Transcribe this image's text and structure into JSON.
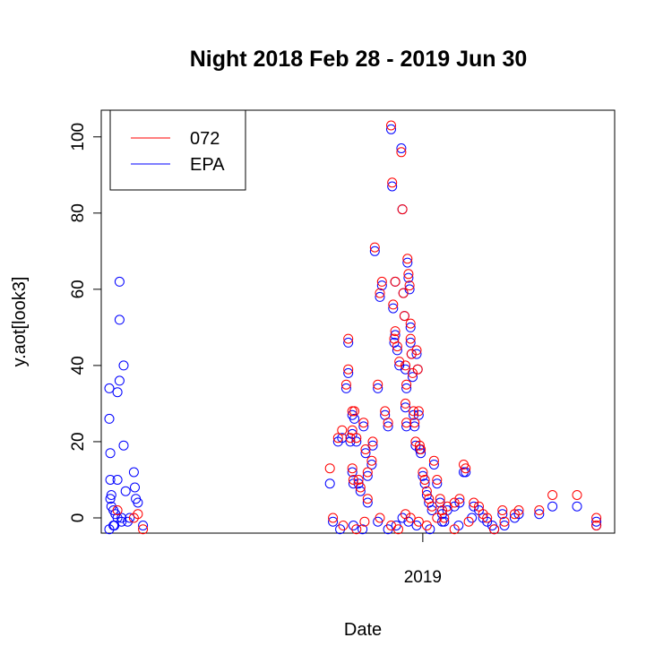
{
  "chart_data": {
    "type": "scatter",
    "title": "Night  2018 Feb 28 - 2019 Jun 30",
    "xlabel": "Date",
    "ylabel": "y.aot[look3]",
    "x_tick_labels": [
      "2019"
    ],
    "x_ticks": [
      "2019-01-01"
    ],
    "xlim": [
      "2018-02-28",
      "2019-06-30"
    ],
    "ylim": [
      -4,
      107
    ],
    "y_ticks": [
      0,
      20,
      40,
      60,
      80,
      100
    ],
    "grid": false,
    "legend": {
      "position": "top-left",
      "entries": [
        {
          "label": "072",
          "color": "#ff0000"
        },
        {
          "label": "EPA",
          "color": "#0000ff"
        }
      ]
    },
    "series": [
      {
        "name": "072",
        "color": "#ff0000",
        "marker": "open-circle",
        "x": [
          "2018-03-08",
          "2018-03-24",
          "2018-03-28",
          "2018-04-02",
          "2018-10-02",
          "2018-10-05",
          "2018-10-10",
          "2018-10-14",
          "2018-10-18",
          "2018-10-20",
          "2018-10-20",
          "2018-10-22",
          "2018-10-24",
          "2018-10-24",
          "2018-10-24",
          "2018-10-25",
          "2018-10-26",
          "2018-10-28",
          "2018-10-30",
          "2018-11-01",
          "2018-11-04",
          "2018-11-06",
          "2018-11-08",
          "2018-11-08",
          "2018-11-12",
          "2018-11-13",
          "2018-11-15",
          "2018-11-18",
          "2018-11-20",
          "2018-11-22",
          "2018-11-25",
          "2018-11-28",
          "2018-12-01",
          "2018-12-02",
          "2018-12-03",
          "2018-12-04",
          "2018-12-05",
          "2018-12-05",
          "2018-12-07",
          "2018-12-09",
          "2018-12-11",
          "2018-12-12",
          "2018-12-13",
          "2018-12-14",
          "2018-12-15",
          "2018-12-15",
          "2018-12-16",
          "2018-12-16",
          "2018-12-17",
          "2018-12-18",
          "2018-12-19",
          "2018-12-20",
          "2018-12-20",
          "2018-12-21",
          "2018-12-22",
          "2018-12-23",
          "2018-12-24",
          "2018-12-25",
          "2018-12-26",
          "2018-12-27",
          "2018-12-28",
          "2018-12-29",
          "2018-12-30",
          "2019-01-01",
          "2019-01-03",
          "2019-01-05",
          "2019-01-07",
          "2019-01-10",
          "2019-01-12",
          "2019-01-15",
          "2019-01-18",
          "2019-01-20",
          "2019-01-22",
          "2019-01-25",
          "2019-02-01",
          "2019-02-06",
          "2019-02-10",
          "2019-02-12",
          "2019-02-20",
          "2019-02-25",
          "2019-03-01",
          "2019-03-05",
          "2019-03-12",
          "2019-03-20",
          "2019-03-22",
          "2019-04-01",
          "2019-04-05",
          "2019-04-25",
          "2019-05-08",
          "2019-06-01",
          "2019-06-20",
          "2019-06-20",
          "2018-10-15",
          "2018-10-28",
          "2018-11-05",
          "2018-11-20",
          "2018-12-01",
          "2018-12-08",
          "2018-12-15",
          "2018-12-20",
          "2018-12-28",
          "2019-01-05",
          "2019-01-15",
          "2019-02-01",
          "2019-02-15"
        ],
        "y": [
          2,
          0,
          1,
          -3,
          13,
          0,
          21,
          23,
          35,
          47,
          39,
          21,
          23,
          28,
          13,
          10,
          28,
          21,
          10,
          8,
          25,
          18,
          12,
          5,
          15,
          20,
          71,
          35,
          59,
          62,
          28,
          25,
          103,
          88,
          56,
          47,
          62,
          49,
          45,
          41,
          96,
          81,
          59,
          53,
          40,
          30,
          35,
          25,
          68,
          64,
          61,
          51,
          47,
          43,
          38,
          28,
          25,
          20,
          44,
          39,
          28,
          19,
          18,
          12,
          10,
          7,
          5,
          3,
          15,
          10,
          5,
          2,
          0,
          3,
          4,
          5,
          14,
          13,
          4,
          3,
          1,
          0,
          -3,
          2,
          -1,
          1,
          2,
          2,
          6,
          6,
          0,
          -2,
          -2,
          -3,
          -1,
          0,
          -2,
          -3,
          1,
          0,
          -1,
          -2,
          0,
          -3,
          -1
        ]
      },
      {
        "name": "EPA",
        "color": "#0000ff",
        "marker": "open-circle",
        "x": [
          "2018-02-28",
          "2018-02-28",
          "2018-03-01",
          "2018-03-01",
          "2018-03-01",
          "2018-03-02",
          "2018-03-02",
          "2018-03-04",
          "2018-03-04",
          "2018-03-06",
          "2018-03-08",
          "2018-03-08",
          "2018-03-08",
          "2018-03-10",
          "2018-03-10",
          "2018-03-10",
          "2018-03-12",
          "2018-03-14",
          "2018-03-14",
          "2018-03-16",
          "2018-03-20",
          "2018-03-24",
          "2018-03-25",
          "2018-03-26",
          "2018-03-28",
          "2018-04-02",
          "2018-02-28",
          "2018-03-05",
          "2018-03-12",
          "2018-03-18",
          "2018-10-02",
          "2018-10-05",
          "2018-10-10",
          "2018-10-14",
          "2018-10-18",
          "2018-10-20",
          "2018-10-20",
          "2018-10-22",
          "2018-10-24",
          "2018-10-24",
          "2018-10-24",
          "2018-10-25",
          "2018-10-26",
          "2018-10-28",
          "2018-10-30",
          "2018-11-01",
          "2018-11-04",
          "2018-11-06",
          "2018-11-08",
          "2018-11-08",
          "2018-11-12",
          "2018-11-13",
          "2018-11-15",
          "2018-11-18",
          "2018-11-20",
          "2018-11-22",
          "2018-11-25",
          "2018-11-28",
          "2018-12-01",
          "2018-12-02",
          "2018-12-03",
          "2018-12-04",
          "2018-12-05",
          "2018-12-05",
          "2018-12-07",
          "2018-12-09",
          "2018-12-11",
          "2018-12-12",
          "2018-12-13",
          "2018-12-14",
          "2018-12-15",
          "2018-12-15",
          "2018-12-16",
          "2018-12-16",
          "2018-12-17",
          "2018-12-18",
          "2018-12-19",
          "2018-12-20",
          "2018-12-20",
          "2018-12-21",
          "2018-12-22",
          "2018-12-23",
          "2018-12-24",
          "2018-12-25",
          "2018-12-26",
          "2018-12-27",
          "2018-12-28",
          "2018-12-29",
          "2018-12-30",
          "2019-01-01",
          "2019-01-03",
          "2019-01-05",
          "2019-01-07",
          "2019-01-10",
          "2019-01-12",
          "2019-01-15",
          "2019-01-18",
          "2019-01-20",
          "2019-01-22",
          "2019-01-25",
          "2019-02-01",
          "2019-02-06",
          "2019-02-10",
          "2019-02-12",
          "2019-02-20",
          "2019-02-25",
          "2019-03-01",
          "2019-03-05",
          "2019-03-12",
          "2019-03-20",
          "2019-03-22",
          "2019-04-01",
          "2019-04-05",
          "2019-04-25",
          "2019-05-08",
          "2019-06-01",
          "2019-06-20",
          "2019-06-20",
          "2018-10-12",
          "2018-10-25",
          "2018-11-03",
          "2018-11-18",
          "2018-11-28",
          "2018-12-06",
          "2018-12-12",
          "2018-12-18",
          "2018-12-26",
          "2019-01-08",
          "2019-01-20",
          "2019-02-05",
          "2019-02-18",
          "2019-03-10"
        ],
        "y": [
          34,
          26,
          17,
          10,
          5,
          6,
          3,
          2,
          -2,
          1,
          10,
          33,
          0,
          52,
          62,
          36,
          -1,
          40,
          19,
          7,
          0,
          12,
          8,
          5,
          4,
          -2,
          -3,
          -2,
          0,
          -1,
          9,
          -1,
          20,
          21,
          34,
          46,
          38,
          20,
          22,
          27,
          12,
          9,
          26,
          20,
          9,
          7,
          24,
          17,
          11,
          4,
          14,
          19,
          70,
          34,
          58,
          61,
          27,
          24,
          102,
          87,
          55,
          46,
          62,
          48,
          44,
          40,
          97,
          81,
          59,
          53,
          39,
          29,
          34,
          24,
          67,
          63,
          60,
          50,
          46,
          43,
          37,
          27,
          24,
          19,
          43,
          39,
          27,
          18,
          17,
          11,
          9,
          6,
          4,
          2,
          14,
          9,
          4,
          1,
          -1,
          2,
          3,
          4,
          12,
          12,
          3,
          2,
          0,
          -1,
          -3,
          1,
          -2,
          0,
          1,
          1,
          3,
          3,
          -1,
          -2,
          -3,
          -2,
          -3,
          -1,
          -3,
          -2,
          0,
          -1,
          -2,
          -3,
          -1,
          -2,
          0,
          -2
        ]
      }
    ]
  }
}
